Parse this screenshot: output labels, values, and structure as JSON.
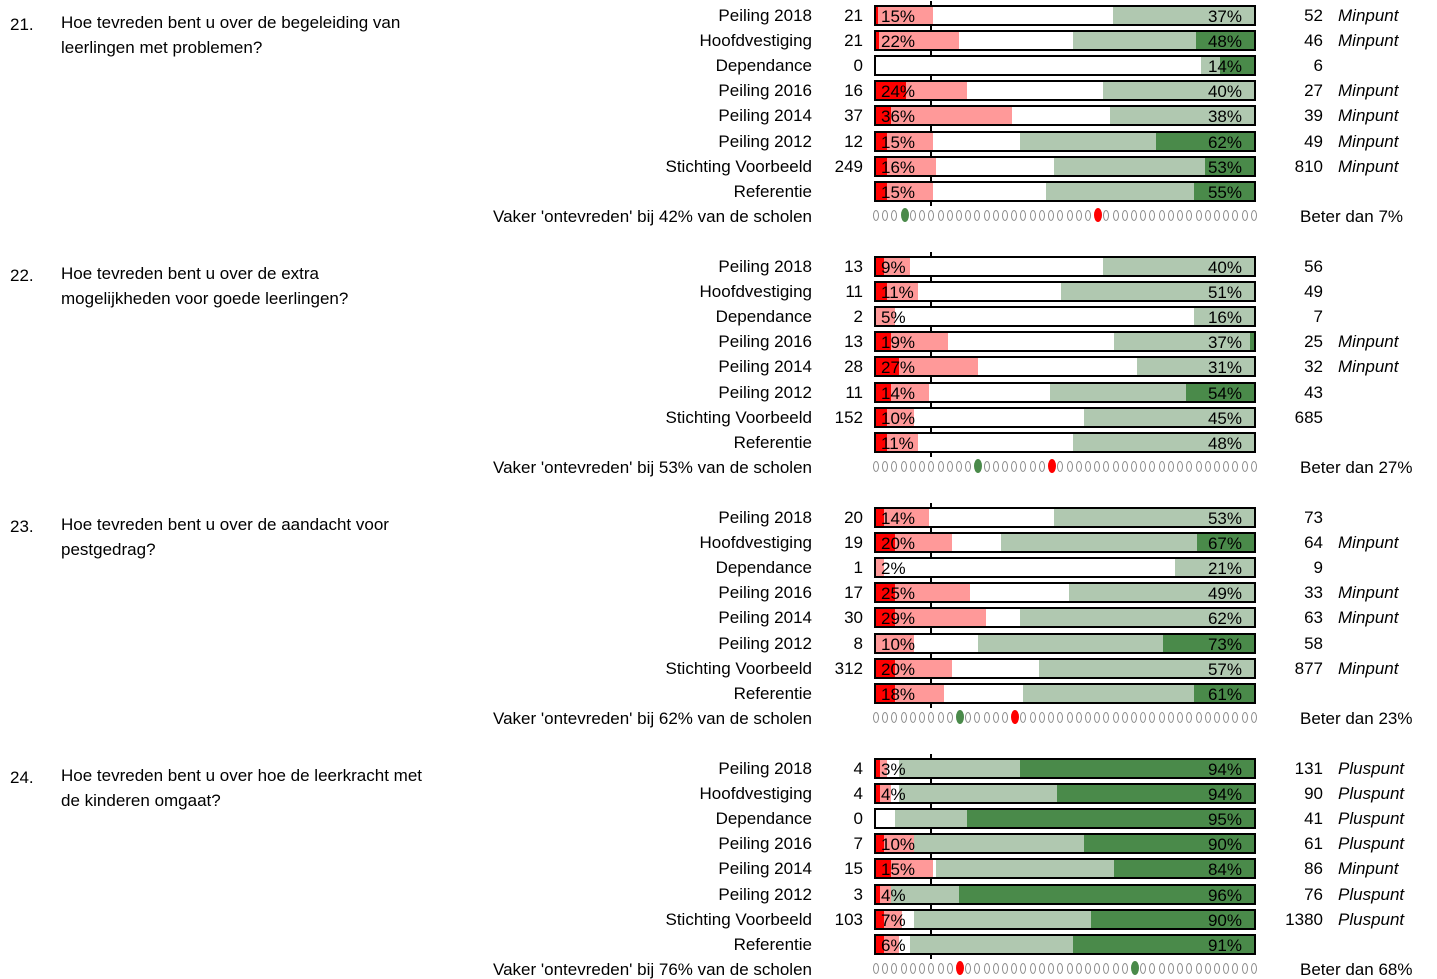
{
  "colors": {
    "very_dissatisfied": "#ff0000",
    "dissatisfied": "#ff9999",
    "neutral": "#ffffff",
    "satisfied": "#b0c8b0",
    "very_satisfied": "#4a8a4a"
  },
  "chart_data": {
    "type": "bar",
    "questions": [
      {
        "number": "21.",
        "text": "Hoe tevreden bent u over de begeleiding van leerlingen met problemen?",
        "rows": [
          {
            "label": "Peiling 2018",
            "n_left": "21",
            "neg_pct": "15%",
            "pos_pct": "37%",
            "n_right": "52",
            "verdict": "Minpunt",
            "segments": [
              0.6,
              14.4,
              47.8,
              37.2,
              0.0
            ]
          },
          {
            "label": "Hoofdvestiging",
            "n_left": "21",
            "neg_pct": "22%",
            "pos_pct": "48%",
            "n_right": "46",
            "verdict": "Minpunt",
            "segments": [
              0.8,
              21.2,
              30.0,
              32.6,
              15.4
            ]
          },
          {
            "label": "Dependance",
            "n_left": "0",
            "neg_pct": "",
            "pos_pct": "14%",
            "n_right": "6",
            "verdict": "",
            "segments": [
              0.0,
              0.0,
              86.0,
              5.0,
              9.0
            ]
          },
          {
            "label": "Peiling 2016",
            "n_left": "16",
            "neg_pct": "24%",
            "pos_pct": "40%",
            "n_right": "27",
            "verdict": "Minpunt",
            "segments": [
              8.0,
              16.0,
              36.0,
              40.0,
              0.0
            ]
          },
          {
            "label": "Peiling 2014",
            "n_left": "37",
            "neg_pct": "36%",
            "pos_pct": "38%",
            "n_right": "39",
            "verdict": "Minpunt",
            "segments": [
              4.0,
              32.0,
              26.0,
              38.0,
              0.0
            ]
          },
          {
            "label": "Peiling 2012",
            "n_left": "12",
            "neg_pct": "15%",
            "pos_pct": "62%",
            "n_right": "49",
            "verdict": "Minpunt",
            "segments": [
              3.0,
              12.0,
              23.0,
              36.0,
              26.0
            ]
          },
          {
            "label": "Stichting Voorbeeld",
            "n_left": "249",
            "neg_pct": "16%",
            "pos_pct": "53%",
            "n_right": "810",
            "verdict": "Minpunt",
            "segments": [
              3.0,
              13.0,
              31.0,
              40.0,
              13.0
            ]
          },
          {
            "label": "Referentie",
            "n_left": "",
            "neg_pct": "15%",
            "pos_pct": "55%",
            "n_right": "",
            "verdict": "",
            "segments": [
              3.0,
              12.0,
              30.0,
              39.0,
              16.0
            ]
          }
        ],
        "summary": "Vaker 'ontevreden' bij 42% van de scholen",
        "beter": "Beter dan 7%",
        "dots_total": 42,
        "green_dot_index": 3,
        "red_dot_index": 24
      },
      {
        "number": "22.",
        "text": "Hoe tevreden bent u over de extra mogelijkheden voor goede leerlingen?",
        "rows": [
          {
            "label": "Peiling 2018",
            "n_left": "13",
            "neg_pct": "9%",
            "pos_pct": "40%",
            "n_right": "56",
            "verdict": "",
            "segments": [
              2.0,
              7.0,
              51.0,
              40.0,
              0.0
            ]
          },
          {
            "label": "Hoofdvestiging",
            "n_left": "11",
            "neg_pct": "11%",
            "pos_pct": "51%",
            "n_right": "49",
            "verdict": "",
            "segments": [
              3.0,
              8.0,
              38.0,
              51.0,
              0.0
            ]
          },
          {
            "label": "Dependance",
            "n_left": "2",
            "neg_pct": "5%",
            "pos_pct": "16%",
            "n_right": "7",
            "verdict": "",
            "segments": [
              0.0,
              5.0,
              79.0,
              16.0,
              0.0
            ]
          },
          {
            "label": "Peiling 2016",
            "n_left": "13",
            "neg_pct": "19%",
            "pos_pct": "37%",
            "n_right": "25",
            "verdict": "Minpunt",
            "segments": [
              4.0,
              15.0,
              44.0,
              36.0,
              1.0
            ]
          },
          {
            "label": "Peiling 2014",
            "n_left": "28",
            "neg_pct": "27%",
            "pos_pct": "31%",
            "n_right": "32",
            "verdict": "Minpunt",
            "segments": [
              6.0,
              21.0,
              42.0,
              31.0,
              0.0
            ]
          },
          {
            "label": "Peiling 2012",
            "n_left": "11",
            "neg_pct": "14%",
            "pos_pct": "54%",
            "n_right": "43",
            "verdict": "",
            "segments": [
              4.0,
              10.0,
              32.0,
              36.0,
              18.0
            ]
          },
          {
            "label": "Stichting Voorbeeld",
            "n_left": "152",
            "neg_pct": "10%",
            "pos_pct": "45%",
            "n_right": "685",
            "verdict": "",
            "segments": [
              3.0,
              7.0,
              45.0,
              45.0,
              0.0
            ]
          },
          {
            "label": "Referentie",
            "n_left": "",
            "neg_pct": "11%",
            "pos_pct": "48%",
            "n_right": "",
            "verdict": "",
            "segments": [
              3.0,
              8.0,
              41.0,
              48.0,
              0.0
            ]
          }
        ],
        "summary": "Vaker 'ontevreden' bij 53% van de scholen",
        "beter": "Beter dan 27%",
        "dots_total": 42,
        "green_dot_index": 11,
        "red_dot_index": 19
      },
      {
        "number": "23.",
        "text": "Hoe tevreden bent u over de aandacht voor pestgedrag?",
        "rows": [
          {
            "label": "Peiling 2018",
            "n_left": "20",
            "neg_pct": "14%",
            "pos_pct": "53%",
            "n_right": "73",
            "verdict": "",
            "segments": [
              2.0,
              12.0,
              33.0,
              53.0,
              0.0
            ]
          },
          {
            "label": "Hoofdvestiging",
            "n_left": "19",
            "neg_pct": "20%",
            "pos_pct": "67%",
            "n_right": "64",
            "verdict": "Minpunt",
            "segments": [
              5.0,
              15.0,
              13.0,
              52.0,
              15.0
            ]
          },
          {
            "label": "Dependance",
            "n_left": "1",
            "neg_pct": "2%",
            "pos_pct": "21%",
            "n_right": "9",
            "verdict": "",
            "segments": [
              0.0,
              2.0,
              77.0,
              21.0,
              0.0
            ]
          },
          {
            "label": "Peiling 2016",
            "n_left": "17",
            "neg_pct": "25%",
            "pos_pct": "49%",
            "n_right": "33",
            "verdict": "Minpunt",
            "segments": [
              5.0,
              20.0,
              26.0,
              49.0,
              0.0
            ]
          },
          {
            "label": "Peiling 2014",
            "n_left": "30",
            "neg_pct": "29%",
            "pos_pct": "62%",
            "n_right": "63",
            "verdict": "Minpunt",
            "segments": [
              5.0,
              24.0,
              9.0,
              62.0,
              0.0
            ]
          },
          {
            "label": "Peiling 2012",
            "n_left": "8",
            "neg_pct": "10%",
            "pos_pct": "73%",
            "n_right": "58",
            "verdict": "",
            "segments": [
              0.0,
              10.0,
              17.0,
              49.0,
              24.0
            ]
          },
          {
            "label": "Stichting Voorbeeld",
            "n_left": "312",
            "neg_pct": "20%",
            "pos_pct": "57%",
            "n_right": "877",
            "verdict": "Minpunt",
            "segments": [
              5.0,
              15.0,
              23.0,
              57.0,
              0.0
            ]
          },
          {
            "label": "Referentie",
            "n_left": "",
            "neg_pct": "18%",
            "pos_pct": "61%",
            "n_right": "",
            "verdict": "",
            "segments": [
              5.0,
              13.0,
              21.0,
              45.0,
              16.0
            ]
          }
        ],
        "summary": "Vaker 'ontevreden' bij 62% van de scholen",
        "beter": "Beter dan 23%",
        "dots_total": 42,
        "green_dot_index": 9,
        "red_dot_index": 15
      },
      {
        "number": "24.",
        "text": "Hoe tevreden bent u over hoe de leerkracht met de kinderen omgaat?",
        "rows": [
          {
            "label": "Peiling 2018",
            "n_left": "4",
            "neg_pct": "3%",
            "pos_pct": "94%",
            "n_right": "131",
            "verdict": "Pluspunt",
            "segments": [
              1.0,
              2.0,
              3.0,
              32.0,
              62.0
            ]
          },
          {
            "label": "Hoofdvestiging",
            "n_left": "4",
            "neg_pct": "4%",
            "pos_pct": "94%",
            "n_right": "90",
            "verdict": "Pluspunt",
            "segments": [
              1.0,
              3.0,
              2.0,
              42.0,
              52.0
            ]
          },
          {
            "label": "Dependance",
            "n_left": "0",
            "neg_pct": "",
            "pos_pct": "95%",
            "n_right": "41",
            "verdict": "Pluspunt",
            "segments": [
              0.0,
              0.0,
              5.0,
              19.0,
              76.0
            ]
          },
          {
            "label": "Peiling 2016",
            "n_left": "7",
            "neg_pct": "10%",
            "pos_pct": "90%",
            "n_right": "61",
            "verdict": "Pluspunt",
            "segments": [
              2.0,
              8.0,
              0.0,
              45.0,
              45.0
            ]
          },
          {
            "label": "Peiling 2014",
            "n_left": "15",
            "neg_pct": "15%",
            "pos_pct": "84%",
            "n_right": "86",
            "verdict": "Minpunt",
            "segments": [
              4.0,
              11.0,
              1.0,
              47.0,
              37.0
            ]
          },
          {
            "label": "Peiling 2012",
            "n_left": "3",
            "neg_pct": "4%",
            "pos_pct": "96%",
            "n_right": "76",
            "verdict": "Pluspunt",
            "segments": [
              1.0,
              3.0,
              0.0,
              18.0,
              78.0
            ]
          },
          {
            "label": "Stichting Voorbeeld",
            "n_left": "103",
            "neg_pct": "7%",
            "pos_pct": "90%",
            "n_right": "1380",
            "verdict": "Pluspunt",
            "segments": [
              2.0,
              5.0,
              3.0,
              47.0,
              43.0
            ]
          },
          {
            "label": "Referentie",
            "n_left": "",
            "neg_pct": "6%",
            "pos_pct": "91%",
            "n_right": "",
            "verdict": "",
            "segments": [
              2.0,
              4.0,
              3.0,
              43.0,
              48.0
            ]
          }
        ],
        "summary": "Vaker 'ontevreden' bij 76% van de scholen",
        "beter": "Beter dan 68%",
        "dots_total": 42,
        "green_dot_index": 28,
        "red_dot_index": 9
      }
    ]
  }
}
